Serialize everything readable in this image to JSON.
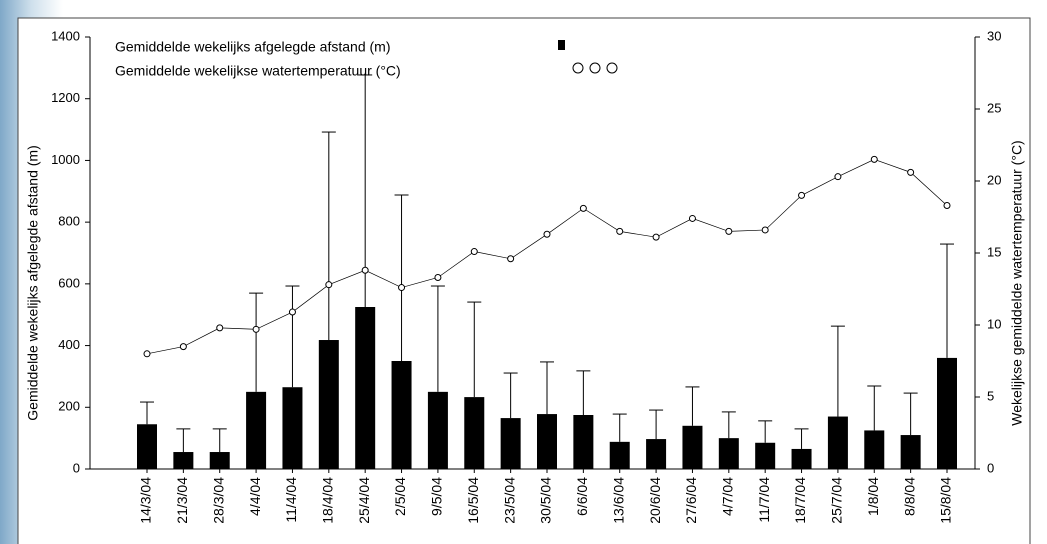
{
  "chart_data": {
    "type": "bar_line",
    "categories": [
      "14/3/04",
      "21/3/04",
      "28/3/04",
      "4/4/04",
      "11/4/04",
      "18/4/04",
      "25/4/04",
      "2/5/04",
      "9/5/04",
      "16/5/04",
      "23/5/04",
      "30/5/04",
      "6/6/04",
      "13/6/04",
      "20/6/04",
      "27/6/04",
      "4/7/04",
      "11/7/04",
      "18/7/04",
      "25/7/04",
      "1/8/04",
      "8/8/04",
      "15/8/04"
    ],
    "ylabel": "Gemiddelde wekelijks afgelegde afstand (m)",
    "y2label": "Wekelijkse gemiddelde watertemperatuur (°C)",
    "ylim": [
      0,
      1400
    ],
    "yticks": [
      0,
      200,
      400,
      600,
      800,
      1000,
      1200,
      1400
    ],
    "y2lim": [
      0,
      30
    ],
    "y2ticks": [
      0,
      5,
      10,
      15,
      20,
      25,
      30
    ],
    "series": [
      {
        "name": "Gemiddelde wekelijks afgelegde afstand (m)",
        "color": "#000000",
        "values": [
          145,
          55,
          55,
          250,
          265,
          418,
          525,
          350,
          250,
          233,
          165,
          178,
          175,
          88,
          97,
          140,
          100,
          85,
          65,
          170,
          125,
          110,
          360
        ],
        "errors": [
          72,
          75,
          75,
          320,
          328,
          674,
          752,
          538,
          343,
          308,
          146,
          169,
          143,
          90,
          94,
          126,
          85,
          71,
          65,
          293,
          144,
          136,
          369
        ]
      },
      {
        "name": "Gemiddelde wekelijkse watertemperatuur (°C)",
        "color": "#000000",
        "axis": "y2",
        "values": [
          8.0,
          8.5,
          9.8,
          9.7,
          10.9,
          12.8,
          13.8,
          12.6,
          13.3,
          15.1,
          14.6,
          16.3,
          18.1,
          16.5,
          16.1,
          17.4,
          16.5,
          16.6,
          19.0,
          20.3,
          21.5,
          20.6,
          18.3
        ]
      }
    ]
  }
}
